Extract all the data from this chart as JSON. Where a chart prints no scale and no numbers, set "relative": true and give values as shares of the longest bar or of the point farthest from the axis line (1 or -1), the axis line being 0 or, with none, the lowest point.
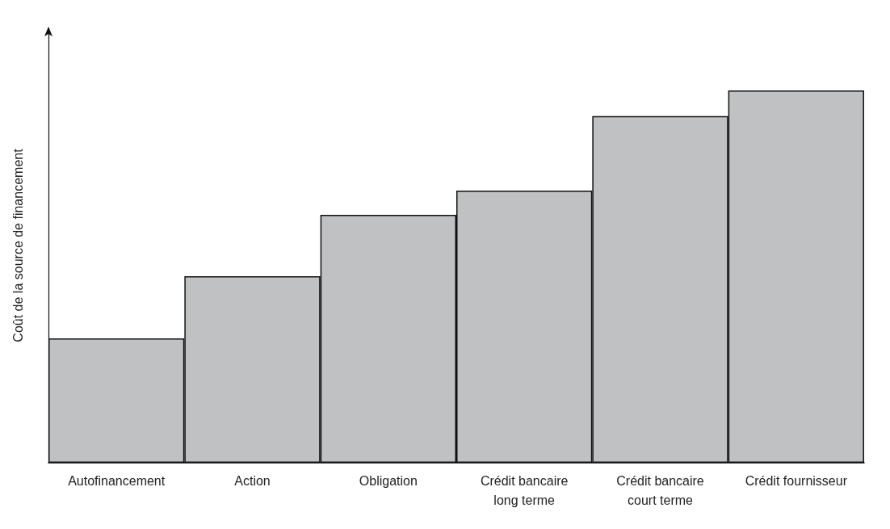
{
  "chart_data": {
    "type": "bar",
    "relative": true,
    "ylabel": "Coût de la source de financement",
    "categories": [
      "Autofinancement",
      "Action",
      "Obligation",
      "Crédit bancaire\nlong terme",
      "Crédit bancaire\ncourt terme",
      "Crédit fournisseur"
    ],
    "values": [
      0.334,
      0.501,
      0.666,
      0.731,
      0.931,
      1
    ],
    "color": "#bfc1c3",
    "grid": false
  }
}
